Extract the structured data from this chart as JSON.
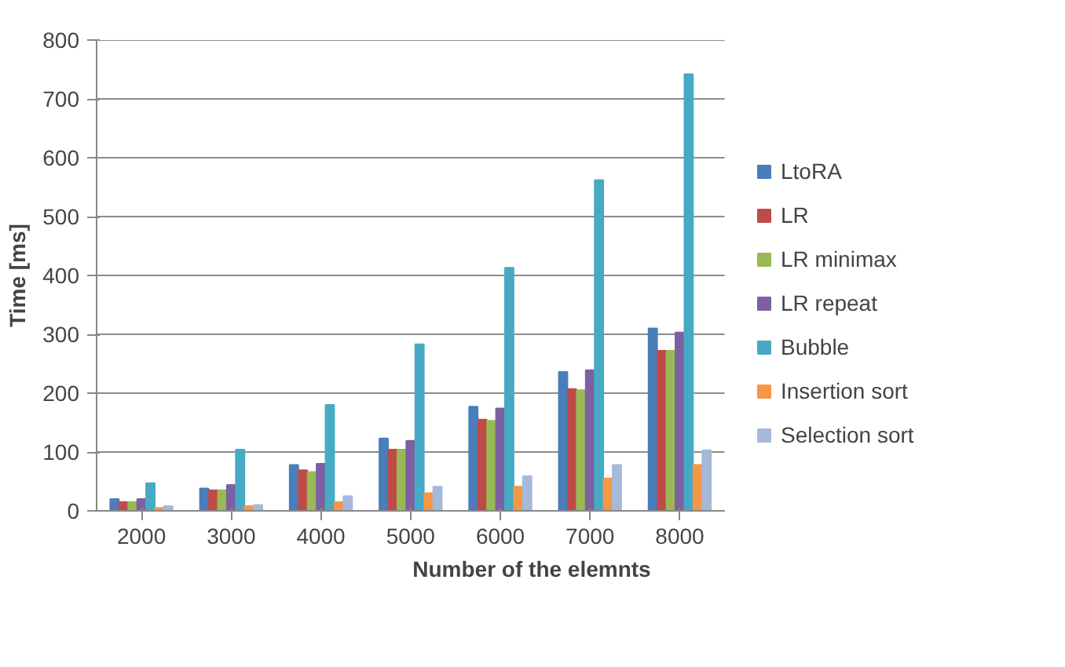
{
  "chart_data": {
    "type": "bar",
    "xlabel": "Number of the elemnts",
    "ylabel": "Time [ms]",
    "categories": [
      "2000",
      "3000",
      "4000",
      "5000",
      "6000",
      "7000",
      "8000"
    ],
    "series": [
      {
        "name": "LtoRA",
        "color": "#4a7ebb",
        "values": [
          20,
          38,
          78,
          123,
          177,
          236,
          310
        ]
      },
      {
        "name": "LR",
        "color": "#be4b48",
        "values": [
          15,
          35,
          69,
          104,
          155,
          207,
          272
        ]
      },
      {
        "name": "LR minimax",
        "color": "#98b954",
        "values": [
          15,
          35,
          66,
          104,
          153,
          205,
          272
        ]
      },
      {
        "name": "LR repeat",
        "color": "#7d60a0",
        "values": [
          20,
          44,
          80,
          119,
          174,
          239,
          303
        ]
      },
      {
        "name": "Bubble",
        "color": "#46aac5",
        "values": [
          47,
          104,
          180,
          283,
          413,
          562,
          742
        ]
      },
      {
        "name": "Insertion sort",
        "color": "#f79646",
        "values": [
          5,
          8,
          15,
          30,
          41,
          55,
          78
        ]
      },
      {
        "name": "Selection sort",
        "color": "#a5b9db",
        "values": [
          8,
          10,
          25,
          41,
          59,
          78,
          103
        ]
      }
    ],
    "ylim": [
      0,
      800
    ],
    "yticks": [
      0,
      100,
      200,
      300,
      400,
      500,
      600,
      700,
      800
    ],
    "grid": "y",
    "legend": "right"
  }
}
